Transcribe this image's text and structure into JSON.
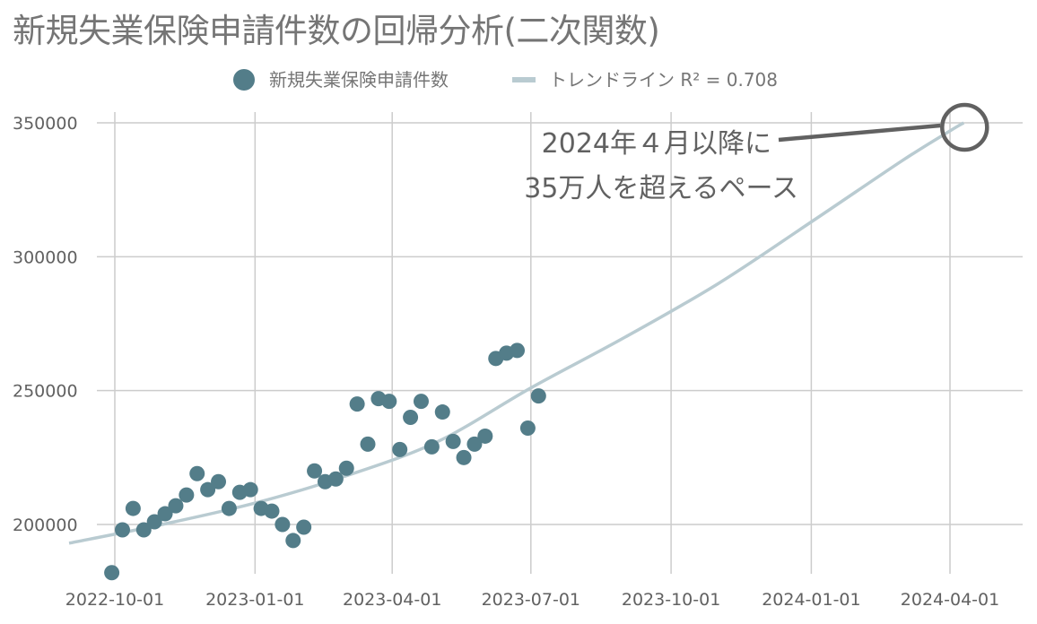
{
  "title": "新規失業保険申請件数の回帰分析(二次関数)",
  "chart_data": {
    "type": "scatter",
    "title": "新規失業保険申請件数の回帰分析(二次関数)",
    "xlabel": "",
    "ylabel": "",
    "x_ticks": [
      "2022-10-01",
      "2023-01-01",
      "2023-04-01",
      "2023-07-01",
      "2023-10-01",
      "2024-01-01",
      "2024-04-01"
    ],
    "y_ticks": [
      200000,
      250000,
      300000,
      350000
    ],
    "xlim": [
      "2022-10-01",
      "2024-04-20"
    ],
    "ylim": [
      182000,
      350000
    ],
    "grid": true,
    "legend_position": "top-center",
    "series": [
      {
        "name": "新規失業保険申請件数",
        "color": "#537d89",
        "x": [
          "2022-09-29",
          "2022-10-06",
          "2022-10-13",
          "2022-10-20",
          "2022-10-27",
          "2022-11-03",
          "2022-11-10",
          "2022-11-17",
          "2022-11-24",
          "2022-12-01",
          "2022-12-08",
          "2022-12-15",
          "2022-12-22",
          "2022-12-29",
          "2023-01-05",
          "2023-01-12",
          "2023-01-19",
          "2023-01-26",
          "2023-02-02",
          "2023-02-09",
          "2023-02-16",
          "2023-02-23",
          "2023-03-02",
          "2023-03-09",
          "2023-03-16",
          "2023-03-23",
          "2023-03-30",
          "2023-04-06",
          "2023-04-13",
          "2023-04-20",
          "2023-04-27",
          "2023-05-04",
          "2023-05-11",
          "2023-05-18",
          "2023-05-25",
          "2023-06-01",
          "2023-06-08",
          "2023-06-15",
          "2023-06-22",
          "2023-06-29",
          "2023-07-06"
        ],
        "y": [
          182000,
          198000,
          206000,
          198000,
          201000,
          204000,
          207000,
          211000,
          219000,
          213000,
          216000,
          206000,
          212000,
          213000,
          206000,
          205000,
          200000,
          194000,
          199000,
          220000,
          216000,
          217000,
          221000,
          245000,
          230000,
          247000,
          246000,
          228000,
          240000,
          246000,
          229000,
          242000,
          231000,
          225000,
          230000,
          233000,
          262000,
          264000,
          265000,
          236000,
          248000
        ]
      },
      {
        "name": "トレンドライン R² = 0.708",
        "type": "line",
        "color": "#b9cbd1",
        "r_squared": 0.708,
        "x": [
          "2022-09-01",
          "2022-11-01",
          "2023-01-01",
          "2023-03-01",
          "2023-05-01",
          "2023-07-01",
          "2023-09-01",
          "2023-11-01",
          "2024-01-01",
          "2024-03-01",
          "2024-04-01",
          "2024-04-10"
        ],
        "y": [
          193000,
          200000,
          208000,
          218000,
          231000,
          251000,
          270000,
          290000,
          313000,
          336000,
          347000,
          350000
        ]
      }
    ],
    "annotation": {
      "lines": [
        "2024年４月以降に",
        "35万人を超えるペース"
      ],
      "target": {
        "x": "2024-04-10",
        "y": 350000
      }
    }
  }
}
